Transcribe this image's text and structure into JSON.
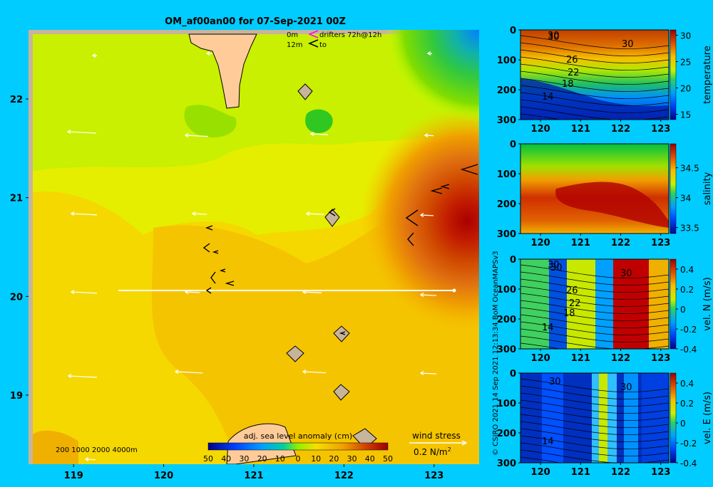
{
  "title": "OM_af00an00 for 07-Sep-2021 00Z",
  "colors": {
    "background": "#00ccff"
  },
  "map_legend": {
    "line1_depth": "0m",
    "line1_label": "drifters 72h@12h",
    "line2_depth": "12m",
    "line2_label": "to"
  },
  "depth_scale_label": "200  1000  2000  4000m",
  "colorbar_label": "adj. sea level anomaly (cm)",
  "wind_label": "wind stress",
  "wind_scale": "0.2 N/m",
  "wind_scale_sup": "2",
  "credit": "© CSIRO 2021   14 Sep 2021 12:13:34 BoM OceanMAPSv3",
  "chart_data": [
    {
      "type": "heatmap",
      "name": "adj. sea level anomaly map",
      "title": "OM_af00an00 for 07-Sep-2021 00Z",
      "x_ticks": [
        "119",
        "120",
        "121",
        "122",
        "123"
      ],
      "y_ticks": [
        "19",
        "20",
        "21",
        "22"
      ],
      "xlim": [
        118.5,
        123.5
      ],
      "ylim": [
        18.3,
        22.7
      ],
      "colorbar": {
        "label": "adj. sea level anomaly (cm)",
        "ticks": [
          "-50",
          "-40",
          "-30",
          "-20",
          "-10",
          "0",
          "10",
          "20",
          "30",
          "40",
          "50"
        ],
        "range": [
          -50,
          50
        ]
      },
      "section_line": {
        "lat": 20,
        "lon_start": 119.5,
        "lon_end": 123.05
      },
      "features": {
        "eddy_center": [
          123.3,
          20.75
        ],
        "eddy_max_cm": 50
      }
    },
    {
      "type": "heatmap",
      "name": "temperature section",
      "x_ticks": [
        "120",
        "121",
        "122",
        "123"
      ],
      "y_ticks": [
        "0",
        "100",
        "200",
        "300"
      ],
      "xlim": [
        119.5,
        123.2
      ],
      "ylim": [
        300,
        0
      ],
      "contour_labels": [
        "30",
        "30",
        "30",
        "26",
        "22",
        "18",
        "14"
      ],
      "colorbar": {
        "label": "temperature",
        "ticks": [
          "15",
          "20",
          "25",
          "30"
        ],
        "range": [
          14,
          31
        ]
      }
    },
    {
      "type": "heatmap",
      "name": "salinity section",
      "x_ticks": [
        "120",
        "121",
        "122",
        "123"
      ],
      "y_ticks": [
        "0",
        "100",
        "200",
        "300"
      ],
      "xlim": [
        119.5,
        123.2
      ],
      "ylim": [
        300,
        0
      ],
      "colorbar": {
        "label": "salinity",
        "ticks": [
          "33.5",
          "34",
          "34.5"
        ],
        "range": [
          33.4,
          34.9
        ]
      }
    },
    {
      "type": "heatmap",
      "name": "northward velocity section",
      "x_ticks": [
        "120",
        "121",
        "122",
        "123"
      ],
      "y_ticks": [
        "0",
        "100",
        "200",
        "300"
      ],
      "xlim": [
        119.5,
        123.2
      ],
      "ylim": [
        300,
        0
      ],
      "contour_labels": [
        "30",
        "30",
        "30",
        "26",
        "22",
        "18",
        "14"
      ],
      "colorbar": {
        "label": "vel. N (m/s)",
        "ticks": [
          "0.4",
          "0.2",
          "0",
          "-0.2",
          "-0.4"
        ],
        "range": [
          -0.4,
          0.5
        ]
      }
    },
    {
      "type": "heatmap",
      "name": "eastward velocity section",
      "x_ticks": [
        "120",
        "121",
        "122",
        "123"
      ],
      "y_ticks": [
        "0",
        "100",
        "200",
        "300"
      ],
      "xlim": [
        119.5,
        123.2
      ],
      "ylim": [
        300,
        0
      ],
      "contour_labels": [
        "30",
        "30",
        "14"
      ],
      "colorbar": {
        "label": "vel. E (m/s)",
        "ticks": [
          "0.4",
          "0.2",
          "0",
          "-0.2",
          "-0.4"
        ],
        "range": [
          -0.4,
          0.5
        ]
      }
    }
  ]
}
